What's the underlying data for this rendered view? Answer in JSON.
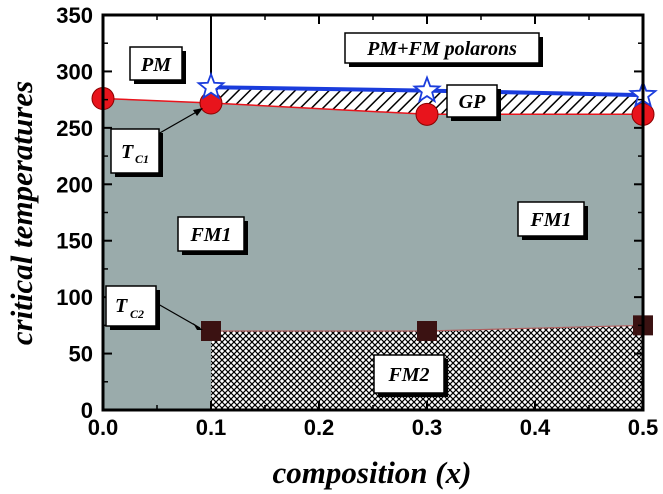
{
  "chart_data": {
    "type": "area",
    "xlabel": "composition (x)",
    "ylabel": "critical temperatures",
    "xlim": [
      0.0,
      0.5
    ],
    "ylim": [
      0,
      350
    ],
    "xticks": [
      "0.0",
      "0.1",
      "0.2",
      "0.3",
      "0.4",
      "0.5"
    ],
    "yticks": [
      "0",
      "50",
      "100",
      "150",
      "200",
      "250",
      "300",
      "350"
    ],
    "grid": false,
    "colors": {
      "fm1_fill": "#9aabab",
      "tc1_marker": "#e8141c",
      "tc2_marker": "#3b1212",
      "tstar_line": "#1a3cdc",
      "tstar_marker": "#ffffff"
    },
    "series": [
      {
        "id": "TC1",
        "marker": "circle",
        "x": [
          0.0,
          0.1,
          0.3,
          0.5
        ],
        "y": [
          276,
          272,
          262,
          262
        ]
      },
      {
        "id": "TC2",
        "marker": "square",
        "x": [
          0.1,
          0.3,
          0.5
        ],
        "y": [
          70,
          70,
          75
        ]
      },
      {
        "id": "Tstar",
        "marker": "star",
        "x": [
          0.1,
          0.3,
          0.5
        ],
        "y": [
          286,
          283,
          279
        ]
      }
    ],
    "annotations": {
      "pm": "PM",
      "pm_fm": "PM+FM polarons",
      "gp": "GP",
      "fm1_left": "FM1",
      "fm1_right": "FM1",
      "fm2": "FM2",
      "tc1_main": "T",
      "tc1_sub": "C1",
      "tc2_main": "T",
      "tc2_sub": "C2"
    }
  }
}
